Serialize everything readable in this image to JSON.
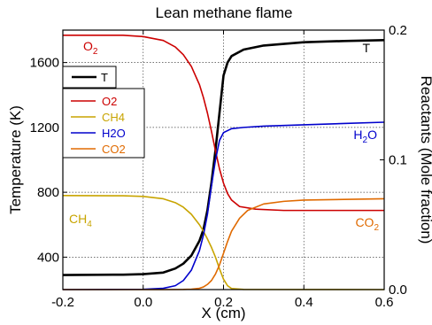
{
  "chart_data": {
    "type": "line",
    "title": "Lean methane flame",
    "xlabel": "X (cm)",
    "ylabel": "Temperature (K)",
    "y2label": "Reactants (Mole fraction)",
    "xlim": [
      -0.2,
      0.6
    ],
    "ylim": [
      200,
      1800
    ],
    "y2lim": [
      0.0,
      0.2
    ],
    "xticks": [
      -0.2,
      0.0,
      0.2,
      0.4,
      0.6
    ],
    "xtick_labels": [
      "-0.2",
      "0.0",
      "0.2",
      "0.4",
      "0.6"
    ],
    "yticks": [
      400,
      800,
      1200,
      1600
    ],
    "ytick_labels": [
      "400",
      "800",
      "1200",
      "1600"
    ],
    "y2ticks": [
      0.0,
      0.1,
      0.2
    ],
    "y2tick_labels": [
      "0.0",
      "0.1",
      "0.2"
    ],
    "grid": true,
    "legends": [
      {
        "placement": "upper-left",
        "entries": [
          "T"
        ]
      },
      {
        "placement": "left",
        "entries": [
          "O2",
          "CH4",
          "H2O",
          "CO2"
        ]
      }
    ],
    "annotations": [
      {
        "text": "O",
        "sub": "2",
        "color": "#cc0000"
      },
      {
        "text": "T",
        "sub": "",
        "color": "#000000"
      },
      {
        "text": "H",
        "sub": "2",
        "tail": "O",
        "color": "#0000cc"
      },
      {
        "text": "CH",
        "sub": "4",
        "color": "#c8a400"
      },
      {
        "text": "CO",
        "sub": "2",
        "color": "#e06a00"
      }
    ],
    "series": [
      {
        "name": "T",
        "axis": "left",
        "color": "#000000",
        "x": [
          -0.2,
          -0.05,
          0.0,
          0.05,
          0.08,
          0.1,
          0.12,
          0.14,
          0.15,
          0.16,
          0.17,
          0.18,
          0.19,
          0.2,
          0.21,
          0.22,
          0.25,
          0.3,
          0.4,
          0.5,
          0.6
        ],
        "y": [
          290,
          292,
          295,
          305,
          330,
          360,
          410,
          500,
          570,
          690,
          860,
          1060,
          1290,
          1520,
          1600,
          1640,
          1680,
          1705,
          1725,
          1733,
          1738
        ]
      },
      {
        "name": "O2",
        "axis": "right",
        "color": "#cc0000",
        "x": [
          -0.2,
          -0.05,
          0.0,
          0.05,
          0.08,
          0.1,
          0.12,
          0.14,
          0.15,
          0.16,
          0.17,
          0.18,
          0.19,
          0.2,
          0.21,
          0.22,
          0.24,
          0.28,
          0.35,
          0.45,
          0.6
        ],
        "y": [
          0.196,
          0.196,
          0.195,
          0.192,
          0.187,
          0.181,
          0.172,
          0.158,
          0.148,
          0.136,
          0.122,
          0.107,
          0.093,
          0.082,
          0.074,
          0.069,
          0.064,
          0.062,
          0.061,
          0.061,
          0.061
        ]
      },
      {
        "name": "CH4",
        "axis": "right",
        "color": "#c8a400",
        "x": [
          -0.2,
          -0.05,
          0.0,
          0.05,
          0.08,
          0.1,
          0.12,
          0.14,
          0.15,
          0.16,
          0.17,
          0.18,
          0.19,
          0.2,
          0.21,
          0.22,
          0.25,
          0.6
        ],
        "y": [
          0.0725,
          0.0723,
          0.0718,
          0.07,
          0.067,
          0.0635,
          0.058,
          0.05,
          0.045,
          0.039,
          0.0325,
          0.025,
          0.016,
          0.008,
          0.003,
          0.0008,
          0.0001,
          0.0
        ]
      },
      {
        "name": "H2O",
        "axis": "right",
        "color": "#0000cc",
        "x": [
          -0.2,
          0.0,
          0.05,
          0.08,
          0.1,
          0.12,
          0.14,
          0.15,
          0.16,
          0.17,
          0.18,
          0.19,
          0.2,
          0.22,
          0.25,
          0.3,
          0.4,
          0.5,
          0.6
        ],
        "y": [
          0.0,
          0.0002,
          0.001,
          0.003,
          0.007,
          0.015,
          0.03,
          0.042,
          0.058,
          0.08,
          0.1,
          0.115,
          0.121,
          0.124,
          0.125,
          0.126,
          0.127,
          0.128,
          0.129
        ]
      },
      {
        "name": "CO2",
        "axis": "right",
        "color": "#e06a00",
        "x": [
          -0.2,
          0.05,
          0.1,
          0.12,
          0.14,
          0.15,
          0.16,
          0.17,
          0.18,
          0.19,
          0.2,
          0.21,
          0.22,
          0.24,
          0.26,
          0.3,
          0.35,
          0.4,
          0.5,
          0.6
        ],
        "y": [
          0.0,
          0.0,
          0.0001,
          0.0003,
          0.001,
          0.002,
          0.004,
          0.007,
          0.012,
          0.019,
          0.028,
          0.037,
          0.045,
          0.055,
          0.061,
          0.066,
          0.068,
          0.069,
          0.0695,
          0.07
        ]
      }
    ]
  }
}
